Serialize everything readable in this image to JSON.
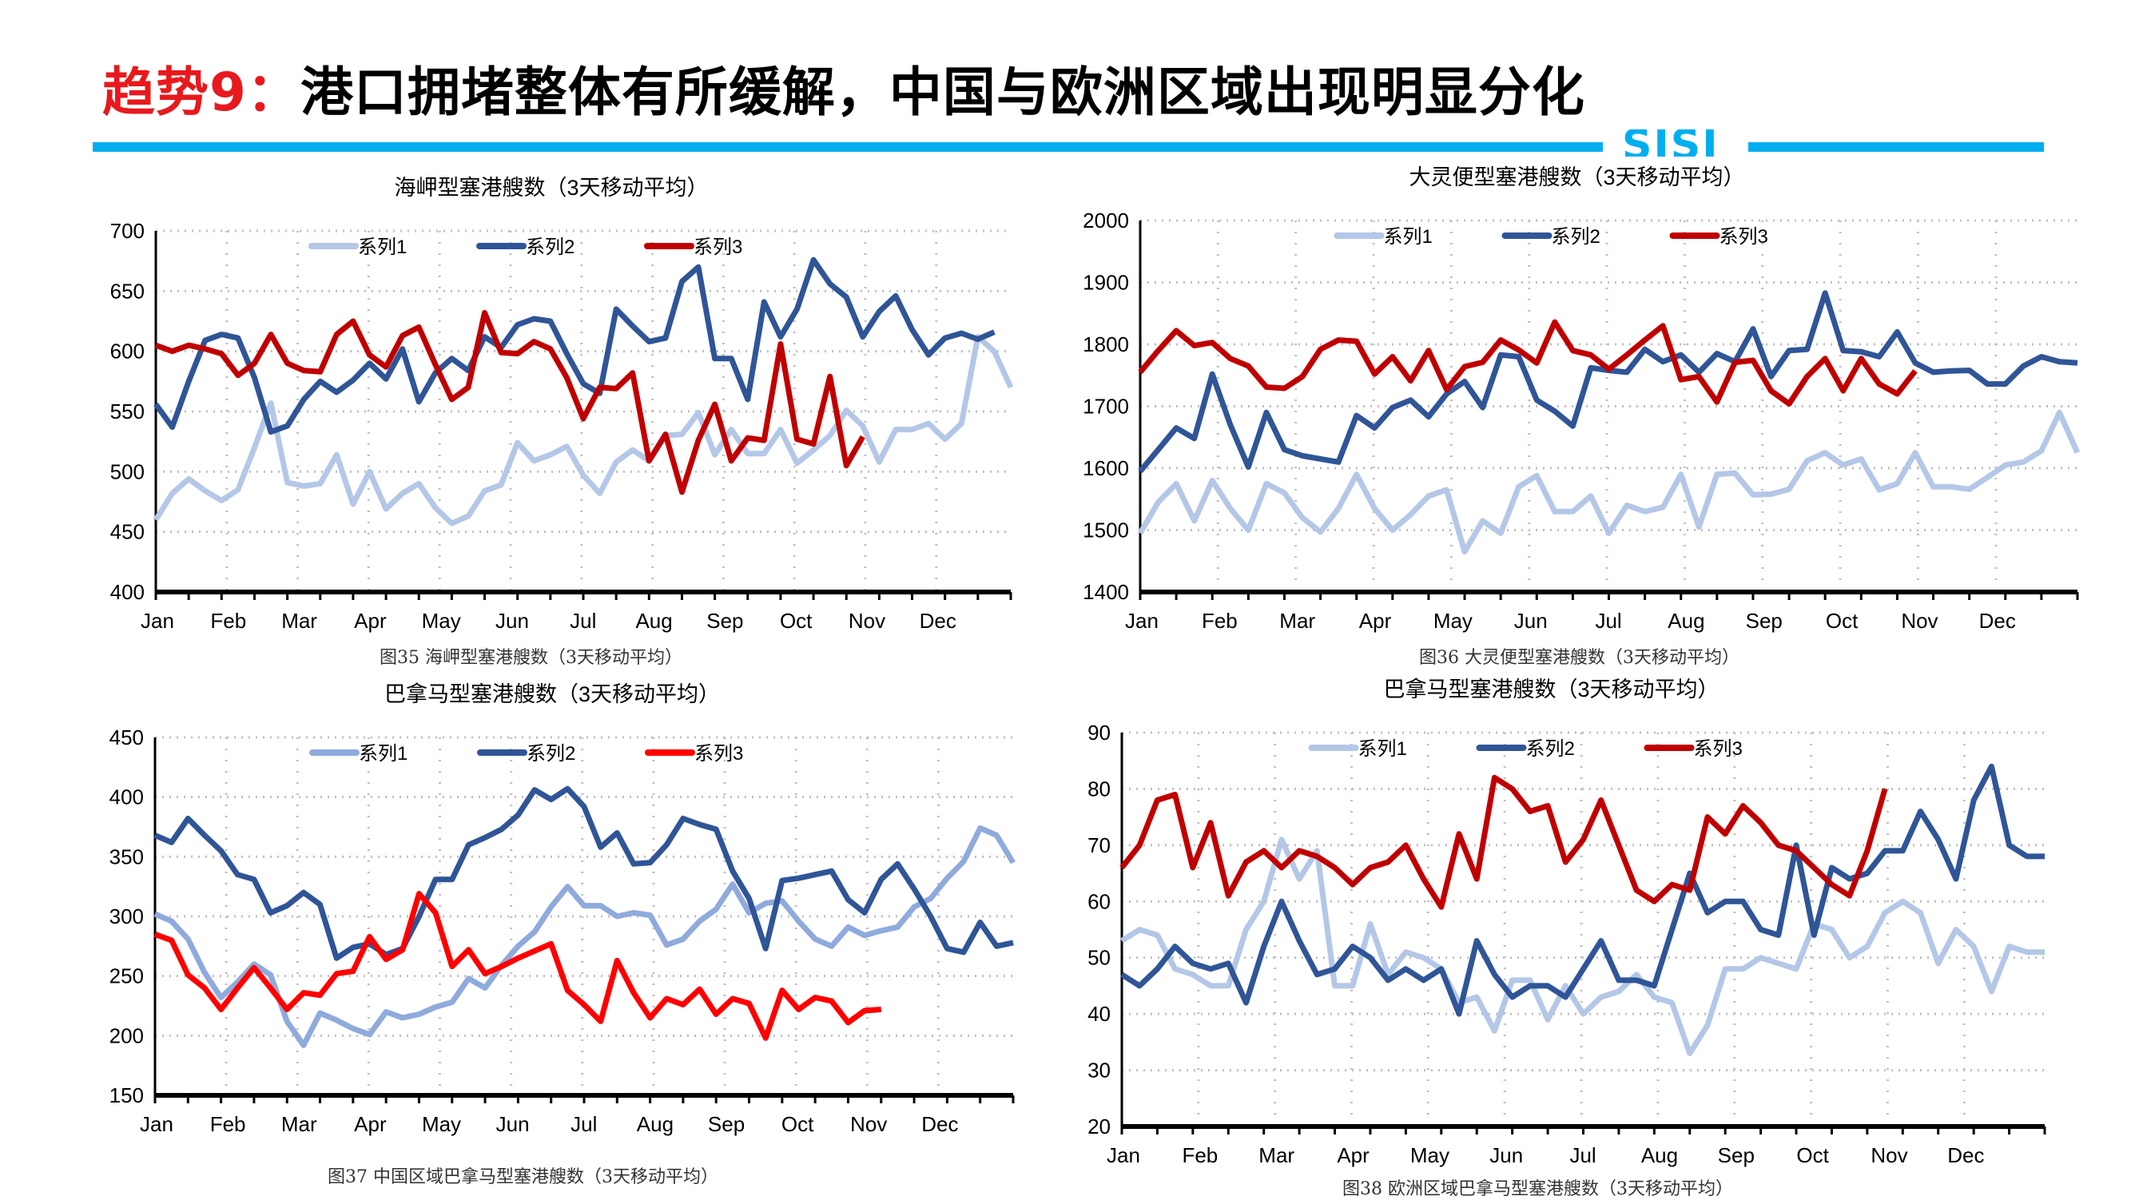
{
  "header": {
    "title_prefix": "趋势9：",
    "title_main": "港口拥堵整体有所缓解，中国与欧洲区域出现明显分化",
    "logo": "SISI",
    "accent_color": "#00aeef",
    "prefix_color": "#e8191d"
  },
  "chart_data": [
    {
      "type": "line",
      "title": "海岬型塞港艘数（3天移动平均）",
      "caption": "图35 海岬型塞港艘数（3天移动平均）",
      "xlabel": "",
      "ylabel": "",
      "ylim": [
        400,
        700
      ],
      "yticks": [
        400,
        450,
        500,
        550,
        600,
        650,
        700
      ],
      "month_labels": [
        "Jan",
        "Feb",
        "Mar",
        "Apr",
        "May",
        "Jun",
        "Jul",
        "Aug",
        "Sep",
        "Oct",
        "Nov",
        "Dec"
      ],
      "grid": true,
      "legend": "top-center",
      "series": [
        {
          "name": "系列1",
          "color": "#b4c7e7",
          "values": [
            460,
            482,
            494,
            484,
            476,
            485,
            520,
            557,
            491,
            488,
            490,
            514,
            473,
            500,
            469,
            482,
            490,
            470,
            457,
            463,
            484,
            489,
            524,
            509,
            514,
            521,
            497,
            482,
            508,
            518,
            509,
            530,
            531,
            549,
            514,
            535,
            515,
            515,
            535,
            507,
            518,
            530,
            551,
            538,
            508,
            535,
            535,
            540,
            527,
            540,
            612,
            600,
            570
          ]
        },
        {
          "name": "系列2",
          "color": "#2f5597",
          "values": [
            556,
            537,
            575,
            609,
            614,
            611,
            578,
            533,
            538,
            560,
            575,
            566,
            576,
            590,
            577,
            602,
            558,
            582,
            594,
            584,
            612,
            603,
            622,
            627,
            625,
            598,
            573,
            565,
            635,
            621,
            608,
            611,
            658,
            670,
            594,
            594,
            560,
            641,
            612,
            635,
            676,
            656,
            645,
            612,
            633,
            646,
            618,
            597,
            611,
            615,
            610,
            616
          ]
        },
        {
          "name": "系列3",
          "color": "#c00000",
          "values": [
            605,
            600,
            605,
            602,
            598,
            580,
            590,
            614,
            590,
            584,
            583,
            614,
            625,
            597,
            587,
            613,
            620,
            589,
            560,
            570,
            632,
            599,
            598,
            608,
            602,
            578,
            544,
            570,
            569,
            582,
            509,
            531,
            483,
            526,
            556,
            509,
            528,
            526,
            606,
            527,
            523,
            579,
            505,
            529
          ]
        }
      ]
    },
    {
      "type": "line",
      "title": "大灵便型塞港艘数（3天移动平均）",
      "caption": "图36 大灵便型塞港艘数（3天移动平均）",
      "xlabel": "",
      "ylabel": "",
      "ylim": [
        1400,
        2000
      ],
      "yticks": [
        1400,
        1500,
        1600,
        1700,
        1800,
        1900,
        2000
      ],
      "month_labels": [
        "Jan",
        "Feb",
        "Mar",
        "Apr",
        "May",
        "Jun",
        "Jul",
        "Aug",
        "Sep",
        "Oct",
        "Nov",
        "Dec"
      ],
      "grid": true,
      "legend": "top-center",
      "series": [
        {
          "name": "系列1",
          "color": "#b4c7e7",
          "values": [
            1495,
            1545,
            1575,
            1515,
            1580,
            1535,
            1500,
            1575,
            1560,
            1520,
            1497,
            1535,
            1590,
            1535,
            1500,
            1525,
            1555,
            1565,
            1465,
            1515,
            1495,
            1570,
            1588,
            1530,
            1530,
            1555,
            1495,
            1540,
            1530,
            1537,
            1590,
            1505,
            1590,
            1592,
            1557,
            1558,
            1566,
            1612,
            1625,
            1605,
            1615,
            1565,
            1575,
            1625,
            1570,
            1570,
            1566,
            1585,
            1605,
            1610,
            1628,
            1690,
            1625
          ]
        },
        {
          "name": "系列2",
          "color": "#2f5597",
          "values": [
            1595,
            1630,
            1665,
            1648,
            1752,
            1670,
            1602,
            1690,
            1630,
            1620,
            1615,
            1610,
            1685,
            1665,
            1698,
            1710,
            1683,
            1720,
            1740,
            1698,
            1783,
            1780,
            1710,
            1692,
            1668,
            1762,
            1758,
            1755,
            1792,
            1772,
            1783,
            1755,
            1785,
            1772,
            1825,
            1748,
            1790,
            1792,
            1883,
            1790,
            1788,
            1780,
            1820,
            1770,
            1755,
            1757,
            1758,
            1736,
            1736,
            1765,
            1780,
            1772,
            1770
          ]
        },
        {
          "name": "系列3",
          "color": "#c00000",
          "values": [
            1755,
            1790,
            1822,
            1798,
            1803,
            1777,
            1765,
            1731,
            1729,
            1748,
            1792,
            1807,
            1805,
            1752,
            1780,
            1741,
            1790,
            1727,
            1764,
            1771,
            1807,
            1791,
            1770,
            1836,
            1790,
            1783,
            1760,
            1783,
            1807,
            1830,
            1743,
            1748,
            1707,
            1771,
            1774,
            1725,
            1704,
            1748,
            1777,
            1725,
            1777,
            1736,
            1720,
            1757
          ]
        }
      ]
    },
    {
      "type": "line",
      "title": "巴拿马型塞港艘数（3天移动平均）",
      "caption": "图37 中国区域巴拿马型塞港艘数（3天移动平均）",
      "xlabel": "",
      "ylabel": "",
      "ylim": [
        150,
        450
      ],
      "yticks": [
        150,
        200,
        250,
        300,
        350,
        400,
        450
      ],
      "month_labels": [
        "Jan",
        "Feb",
        "Mar",
        "Apr",
        "May",
        "Jun",
        "Jul",
        "Aug",
        "Sep",
        "Oct",
        "Nov",
        "Dec"
      ],
      "grid": true,
      "legend": "top-center",
      "series": [
        {
          "name": "系列1",
          "color": "#8faadc",
          "values": [
            302,
            296,
            281,
            253,
            232,
            245,
            260,
            251,
            212,
            192,
            219,
            213,
            206,
            201,
            220,
            215,
            218,
            224,
            228,
            248,
            240,
            259,
            275,
            287,
            308,
            325,
            309,
            309,
            300,
            303,
            301,
            276,
            281,
            296,
            306,
            327,
            303,
            311,
            313,
            296,
            281,
            275,
            291,
            284,
            288,
            291,
            308,
            315,
            332,
            346,
            374,
            368,
            345
          ]
        },
        {
          "name": "系列2",
          "color": "#2f5597",
          "values": [
            368,
            362,
            382,
            368,
            355,
            335,
            331,
            303,
            309,
            320,
            310,
            265,
            274,
            277,
            268,
            273,
            300,
            331,
            331,
            360,
            366,
            373,
            385,
            406,
            398,
            407,
            392,
            358,
            370,
            344,
            345,
            360,
            382,
            377,
            373,
            338,
            315,
            273,
            330,
            332,
            335,
            338,
            314,
            303,
            331,
            344,
            323,
            300,
            273,
            270,
            295,
            275,
            278
          ]
        },
        {
          "name": "系列3",
          "color": "#ff0000",
          "values": [
            285,
            280,
            251,
            240,
            222,
            240,
            257,
            240,
            222,
            236,
            234,
            252,
            254,
            283,
            264,
            272,
            319,
            303,
            258,
            272,
            252,
            258,
            265,
            271,
            277,
            238,
            226,
            212,
            263,
            236,
            215,
            231,
            226,
            239,
            218,
            231,
            227,
            198,
            238,
            222,
            232,
            229,
            211,
            221,
            222
          ]
        }
      ]
    },
    {
      "type": "line",
      "title": "巴拿马型塞港艘数（3天移动平均）",
      "caption": "图38 欧洲区域巴拿马型塞港艘数（3天移动平均）",
      "xlabel": "",
      "ylabel": "",
      "ylim": [
        20,
        90
      ],
      "yticks": [
        20,
        30,
        40,
        50,
        60,
        70,
        80,
        90
      ],
      "month_labels": [
        "Jan",
        "Feb",
        "Mar",
        "Apr",
        "May",
        "Jun",
        "Jul",
        "Aug",
        "Sep",
        "Oct",
        "Nov",
        "Dec"
      ],
      "grid": true,
      "legend": "top-center",
      "series": [
        {
          "name": "系列1",
          "color": "#b4c7e7",
          "values": [
            53,
            55,
            54,
            48,
            47,
            45,
            45,
            55,
            60,
            71,
            64,
            69,
            45,
            45,
            56,
            47,
            51,
            50,
            48,
            42,
            43,
            37,
            46,
            46,
            39,
            45,
            40,
            43,
            44,
            47,
            43,
            42,
            33,
            38,
            48,
            48,
            50,
            49,
            48,
            56,
            55,
            50,
            52,
            58,
            60,
            58,
            49,
            55,
            52,
            44,
            52,
            51,
            51
          ]
        },
        {
          "name": "系列2",
          "color": "#2f5597",
          "values": [
            47,
            45,
            48,
            52,
            49,
            48,
            49,
            42,
            52,
            60,
            53,
            47,
            48,
            52,
            50,
            46,
            48,
            46,
            48,
            40,
            53,
            47,
            43,
            45,
            45,
            43,
            48,
            53,
            46,
            46,
            45,
            55,
            65,
            58,
            60,
            60,
            55,
            54,
            70,
            54,
            66,
            64,
            65,
            69,
            69,
            76,
            71,
            64,
            78,
            84,
            70,
            68,
            68
          ]
        },
        {
          "name": "系列3",
          "color": "#c00000",
          "values": [
            66,
            70,
            78,
            79,
            66,
            74,
            61,
            67,
            69,
            66,
            69,
            68,
            66,
            63,
            66,
            67,
            70,
            64,
            59,
            72,
            64,
            82,
            80,
            76,
            77,
            67,
            71,
            78,
            70,
            62,
            60,
            63,
            62,
            75,
            72,
            77,
            74,
            70,
            69,
            66,
            63,
            61,
            69,
            80
          ]
        }
      ]
    }
  ]
}
